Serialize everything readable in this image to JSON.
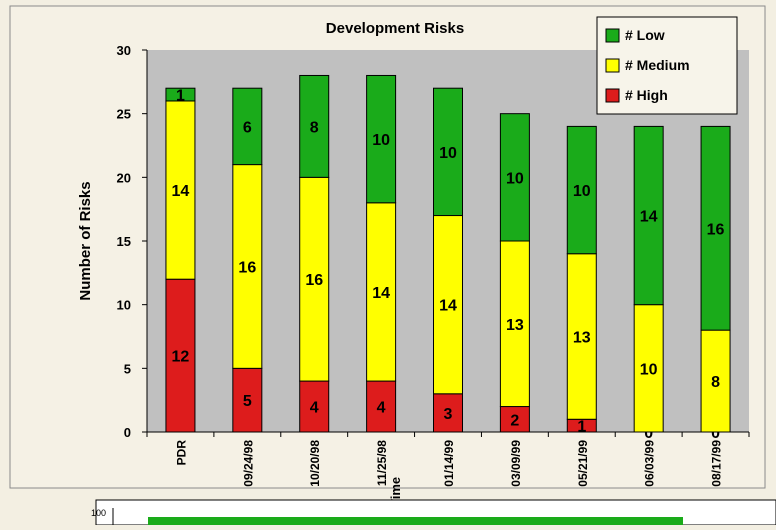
{
  "chart_data": {
    "type": "bar",
    "stacked": true,
    "title": "Development Risks",
    "xlabel": "Time",
    "ylabel": "Number of Risks",
    "ylim": [
      0,
      30
    ],
    "yticks": [
      0,
      5,
      10,
      15,
      20,
      25,
      30
    ],
    "grid": false,
    "legend_position": "top-right",
    "categories": [
      "PDR",
      "09/24/98",
      "10/20/98",
      "11/25/98",
      "01/14/99",
      "03/09/99",
      "05/21/99",
      "06/03/99",
      "08/17/99"
    ],
    "series": [
      {
        "name": "# High",
        "color": "#dd1c1c",
        "values": [
          12,
          5,
          4,
          4,
          3,
          2,
          1,
          0,
          0
        ]
      },
      {
        "name": "# Medium",
        "color": "#ffff00",
        "values": [
          14,
          16,
          16,
          14,
          14,
          13,
          13,
          10,
          8
        ]
      },
      {
        "name": "# Low",
        "color": "#1aab1a",
        "values": [
          1,
          6,
          8,
          10,
          10,
          10,
          10,
          14,
          16
        ]
      }
    ]
  },
  "colors": {
    "plot_background": "#c0c0c0",
    "page_background": "#f3efe2"
  },
  "lower_chart": {
    "axis_label": "100",
    "bar_color": "#1aab1a"
  }
}
